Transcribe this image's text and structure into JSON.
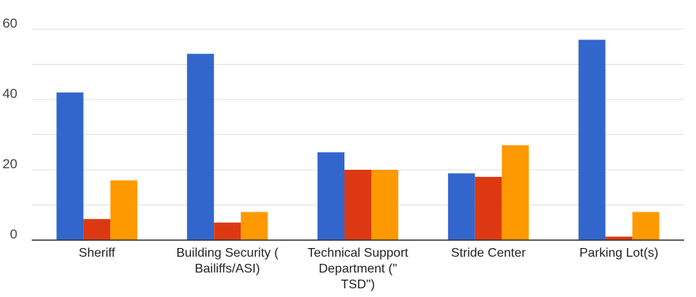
{
  "chart_data": {
    "type": "bar",
    "title": "",
    "xlabel": "",
    "ylabel": "",
    "categories": [
      [
        "Sheriff"
      ],
      [
        "Building Security (",
        "Bailiffs/ASI)"
      ],
      [
        "Technical Support",
        "Department (\"",
        "TSD\")"
      ],
      [
        "Stride Center"
      ],
      [
        "Parking Lot(s)"
      ]
    ],
    "series": [
      {
        "values": [
          42,
          53,
          25,
          19,
          57
        ],
        "color": "#3366cc"
      },
      {
        "values": [
          6,
          5,
          20,
          18,
          1
        ],
        "color": "#dc3912"
      },
      {
        "values": [
          17,
          8,
          20,
          27,
          8
        ],
        "color": "#ff9900"
      }
    ],
    "ylim": [
      0,
      60
    ],
    "yticks": [
      0,
      20,
      40,
      60
    ],
    "grid": true,
    "legend": "none"
  }
}
